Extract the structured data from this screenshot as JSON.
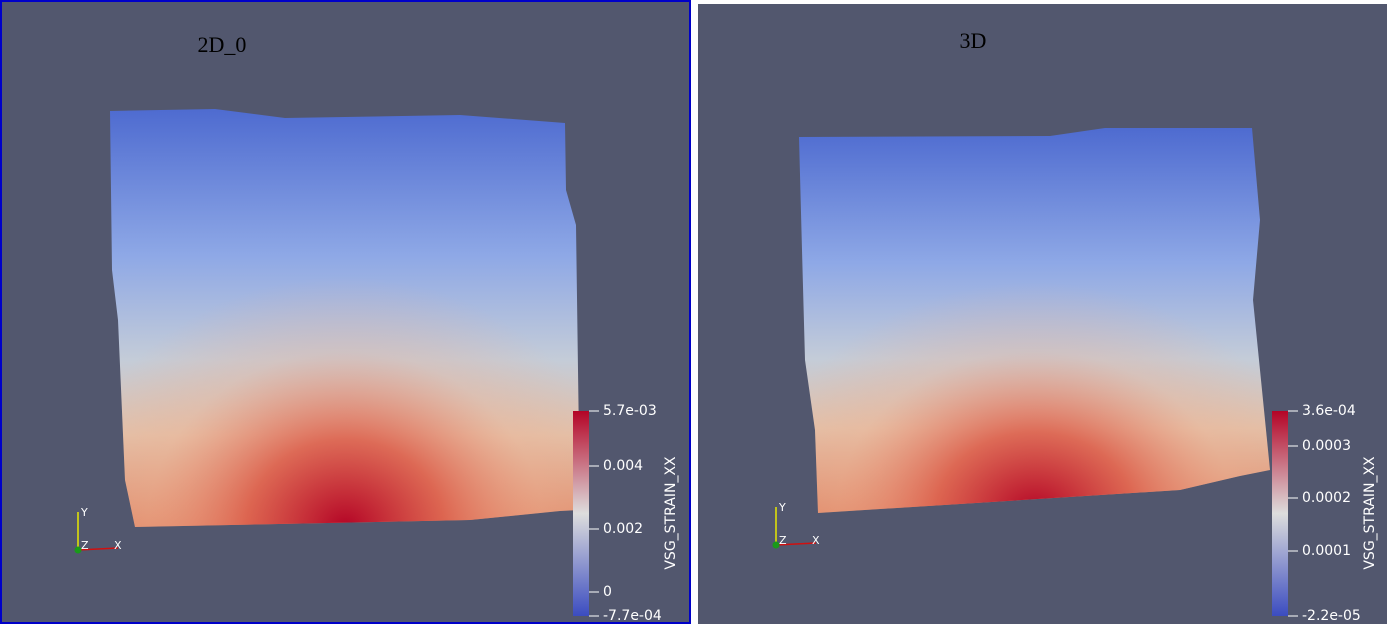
{
  "views": [
    {
      "title": "2D_0",
      "colorbar": {
        "title": "VSG_STRAIN_XX",
        "ticks": [
          "5.7e-03",
          "0.004",
          "0.002",
          "0",
          "-7.7e-04"
        ]
      },
      "axes": {
        "x": "X",
        "y": "Y",
        "z": "Z"
      }
    },
    {
      "title": "3D",
      "colorbar": {
        "title": "VSG_STRAIN_XX",
        "ticks": [
          "3.6e-04",
          "0.0003",
          "0.0002",
          "0.0001",
          "-2.2e-05"
        ]
      },
      "axes": {
        "x": "X",
        "y": "Y",
        "z": "Z"
      }
    }
  ]
}
